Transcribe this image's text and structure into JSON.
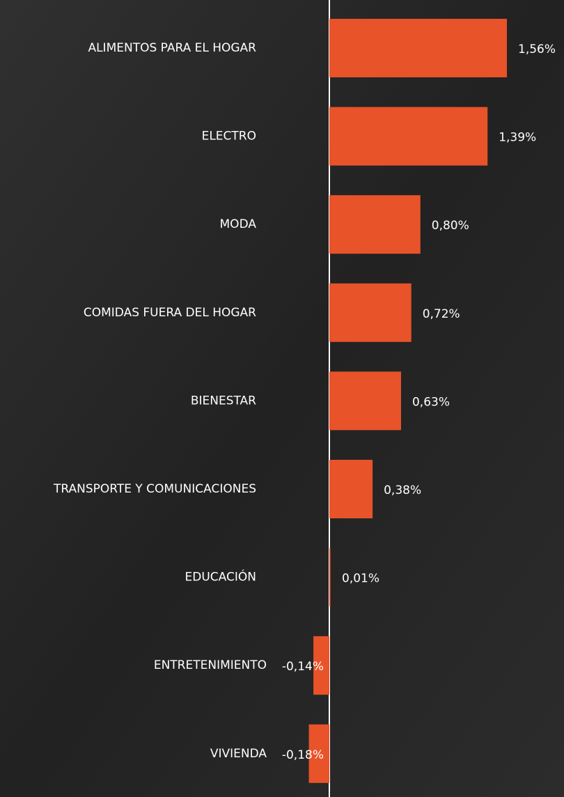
{
  "chart_data": {
    "type": "bar",
    "orientation": "horizontal",
    "categories": [
      "ALIMENTOS PARA EL HOGAR",
      "ELECTRO",
      "MODA",
      "COMIDAS FUERA DEL HOGAR",
      "BIENESTAR",
      "TRANSPORTE Y COMUNICACIONES",
      "EDUCACIÓN",
      "ENTRETENIMIENTO",
      "VIVIENDA"
    ],
    "values": [
      1.56,
      1.39,
      0.8,
      0.72,
      0.63,
      0.38,
      0.01,
      -0.14,
      -0.18
    ],
    "value_labels": [
      "1,56%",
      "1,39%",
      "0,80%",
      "0,72%",
      "0,63%",
      "0,38%",
      "0,01%",
      "-0,14%",
      "-0,18%"
    ],
    "color": "#e8532a"
  }
}
